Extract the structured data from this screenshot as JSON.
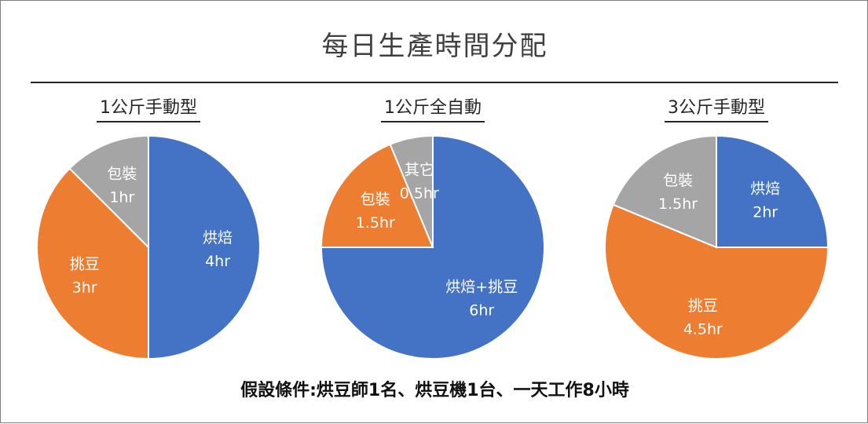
{
  "title": "每日生產時間分配",
  "footnote": "假設條件:烘豆師1名、烘豆機1台、一天工作8小時",
  "colors": {
    "blue": "#4472c4",
    "orange": "#ed7d31",
    "gray": "#a5a5a5"
  },
  "chart_data": [
    {
      "type": "pie",
      "title": "1公斤手動型",
      "slices": [
        {
          "label": "烘焙",
          "value": 4,
          "value_label": "4hr",
          "color": "#4472c4"
        },
        {
          "label": "挑豆",
          "value": 3,
          "value_label": "3hr",
          "color": "#ed7d31"
        },
        {
          "label": "包裝",
          "value": 1,
          "value_label": "1hr",
          "color": "#a5a5a5"
        }
      ]
    },
    {
      "type": "pie",
      "title": "1公斤全自動",
      "slices": [
        {
          "label": "烘焙+挑豆",
          "value": 6,
          "value_label": "6hr",
          "color": "#4472c4"
        },
        {
          "label": "包裝",
          "value": 1.5,
          "value_label": "1.5hr",
          "color": "#ed7d31"
        },
        {
          "label": "其它",
          "value": 0.5,
          "value_label": "0.5hr",
          "color": "#a5a5a5"
        }
      ]
    },
    {
      "type": "pie",
      "title": "3公斤手動型",
      "slices": [
        {
          "label": "烘焙",
          "value": 2,
          "value_label": "2hr",
          "color": "#4472c4"
        },
        {
          "label": "挑豆",
          "value": 4.5,
          "value_label": "4.5hr",
          "color": "#ed7d31"
        },
        {
          "label": "包裝",
          "value": 1.5,
          "value_label": "1.5hr",
          "color": "#a5a5a5"
        }
      ]
    }
  ]
}
